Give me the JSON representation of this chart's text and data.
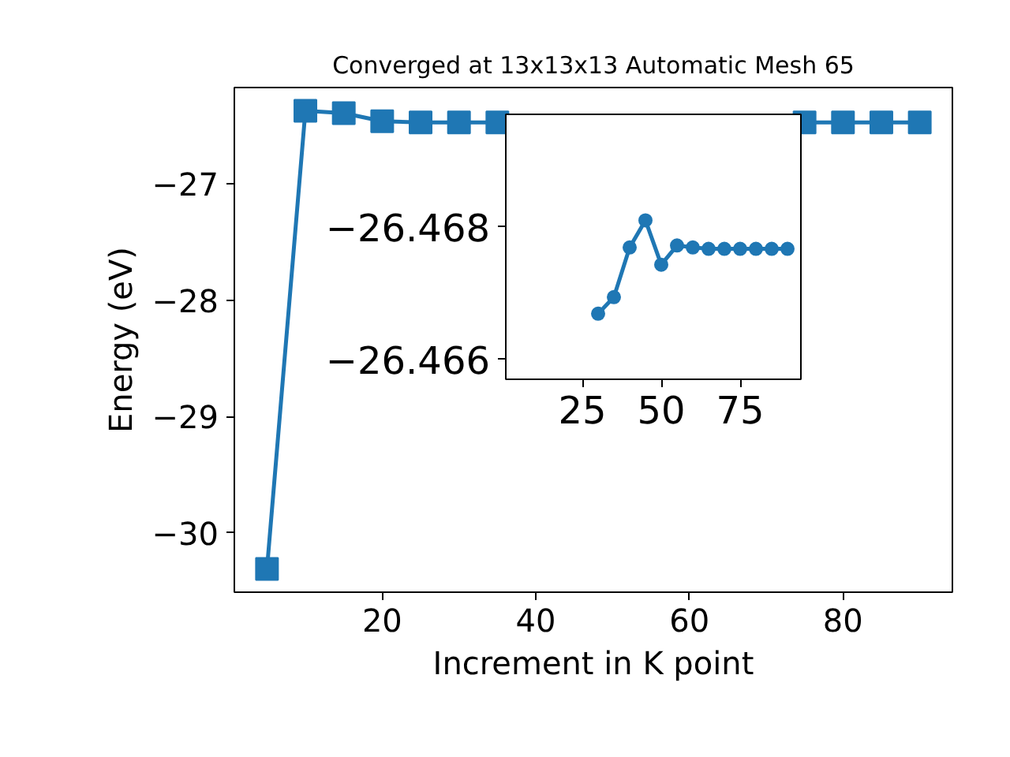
{
  "chart_data": [
    {
      "type": "line",
      "title": "Converged at 13x13x13 Automatic Mesh 65",
      "xlabel": "Increment in K point",
      "ylabel": "Energy (eV)",
      "marker": "square",
      "grid": false,
      "x": [
        5,
        10,
        15,
        20,
        25,
        30,
        35,
        40,
        45,
        50,
        55,
        60,
        65,
        70,
        75,
        80,
        85,
        90
      ],
      "series": [
        {
          "color": "#1f77b4",
          "values": [
            -30.31,
            -26.37,
            -26.39,
            -26.46,
            -26.47,
            -26.47,
            -26.47,
            null,
            null,
            null,
            null,
            null,
            null,
            null,
            -26.47,
            -26.47,
            -26.47,
            -26.47
          ]
        }
      ],
      "xlim": [
        0.75,
        94.25
      ],
      "ylim": [
        -30.51,
        -26.17
      ],
      "xticks": [
        20,
        40,
        60,
        80
      ],
      "yticks": [
        {
          "value": -30,
          "label": "−30"
        },
        {
          "value": -29,
          "label": "−29"
        },
        {
          "value": -28,
          "label": "−28"
        },
        {
          "value": -27,
          "label": "−27"
        }
      ]
    },
    {
      "type": "line",
      "marker": "circle",
      "grid": false,
      "x": [
        30,
        35,
        40,
        45,
        50,
        55,
        60,
        65,
        70,
        75,
        80,
        85,
        90
      ],
      "series": [
        {
          "color": "#1f77b4",
          "values": [
            -26.46669,
            -26.46694,
            -26.46769,
            -26.4681,
            -26.46743,
            -26.46772,
            -26.46769,
            -26.46767,
            -26.46767,
            -26.46767,
            -26.46767,
            -26.46767,
            -26.46767
          ]
        }
      ],
      "xlim": [
        0.75,
        94.25
      ],
      "ylim": [
        -26.4657,
        -26.4697
      ],
      "xticks": [
        25,
        50,
        75
      ],
      "yticks": [
        {
          "value": -26.468,
          "label": "−26.468"
        },
        {
          "value": -26.466,
          "label": "−26.466"
        }
      ]
    }
  ]
}
